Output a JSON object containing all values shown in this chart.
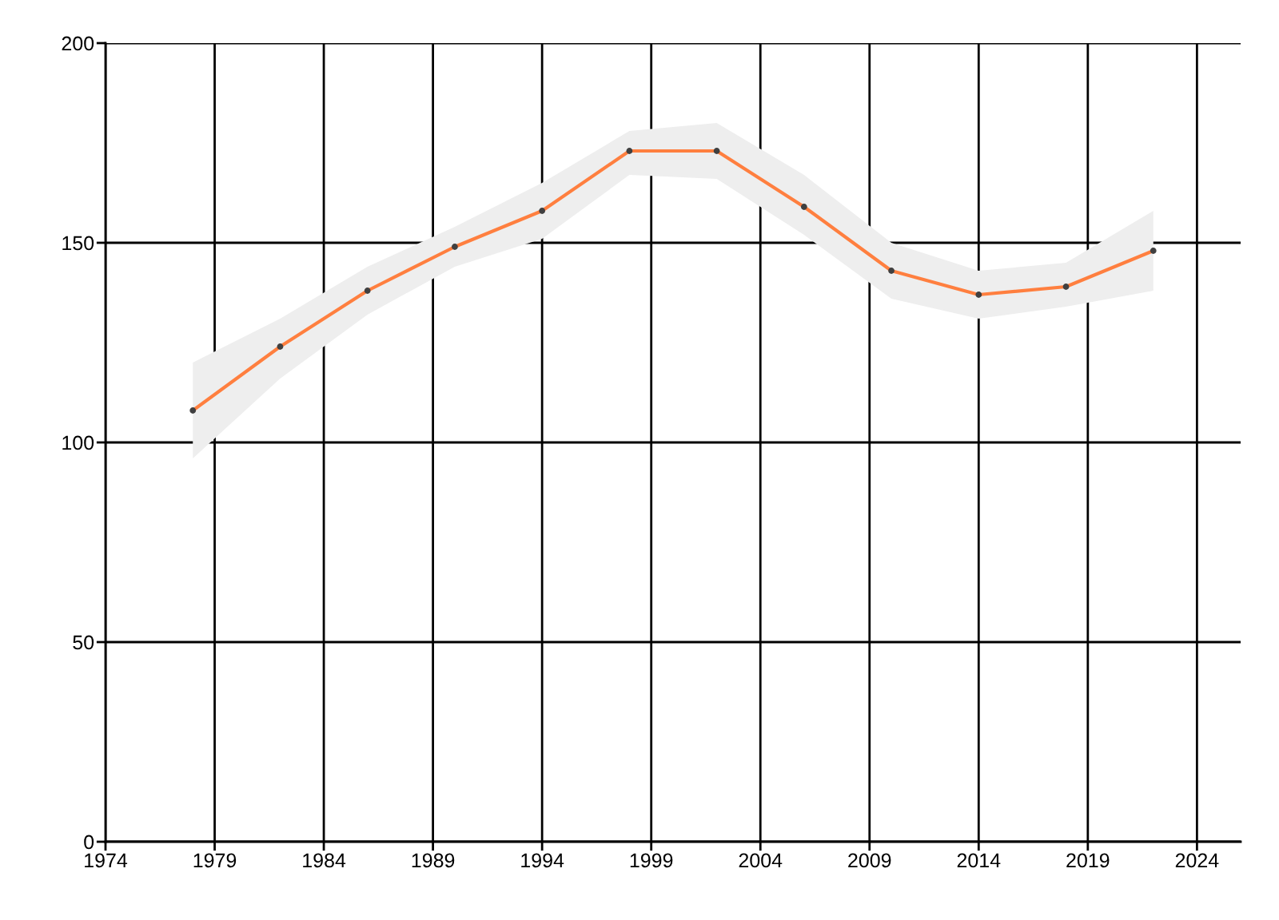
{
  "chart_data": {
    "type": "line",
    "x": [
      1978,
      1982,
      1986,
      1990,
      1994,
      1998,
      2002,
      2006,
      2010,
      2014,
      2018,
      2022
    ],
    "series": [
      {
        "color": "#ff7f3f",
        "values": [
          108,
          124,
          138,
          149,
          158,
          173,
          173,
          159,
          143,
          137,
          139,
          148
        ],
        "lower": [
          96,
          116,
          132,
          144,
          151,
          167,
          166,
          152,
          136,
          131,
          134,
          138
        ],
        "upper": [
          120,
          131,
          144,
          154,
          165,
          178,
          180,
          167,
          150,
          143,
          145,
          158
        ]
      }
    ],
    "xlim": [
      1974,
      2026
    ],
    "xticks": [
      1974,
      1979,
      1984,
      1989,
      1994,
      1999,
      2004,
      2009,
      2014,
      2019,
      2024
    ],
    "ylim": [
      0,
      200
    ],
    "yticks": [
      0,
      50,
      100,
      150,
      200
    ],
    "grid": true,
    "marker": "circle",
    "line_style": "solid"
  }
}
